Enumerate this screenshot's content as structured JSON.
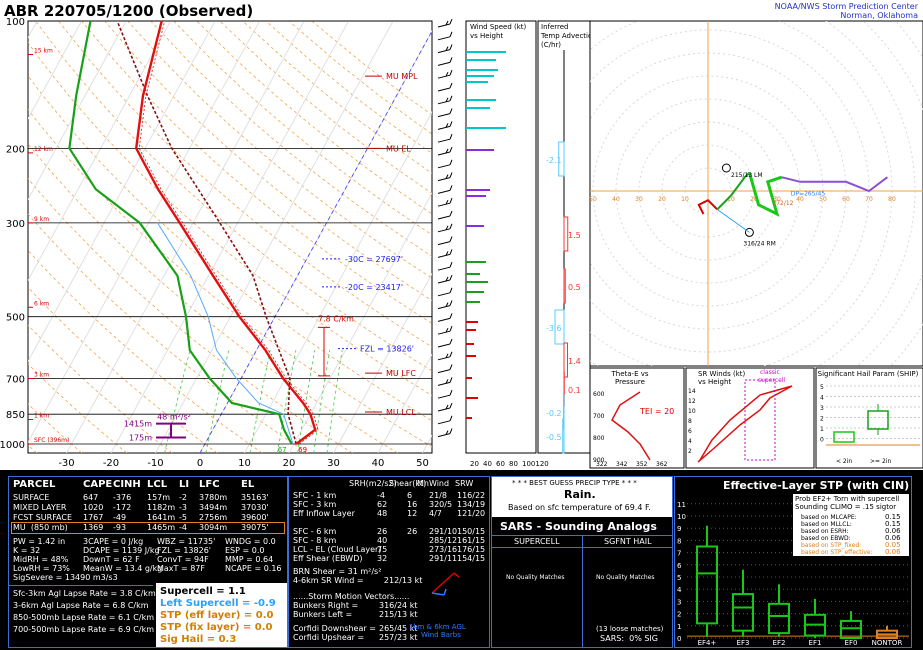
{
  "title": "ABR   220705/1200  (Observed)",
  "agency": "NOAA/NWS Storm Prediction Center",
  "location": "Norman, Oklahoma",
  "skewt": {
    "pressure_labels": [
      "100",
      "200",
      "300",
      "500",
      "700",
      "850",
      "1000"
    ],
    "temp_labels": [
      "-30",
      "-20",
      "-10",
      "0",
      "10",
      "20",
      "30",
      "40",
      "50"
    ],
    "height_labels": [
      "15 km",
      "12 km",
      "9 km",
      "6 km",
      "3 km",
      "1 km",
      "SFC (396m)"
    ],
    "mu_mpl": "MU MPL",
    "mu_el": "MU EL",
    "mu_lfc": "MU LFC",
    "mu_lcl": "MU LCL",
    "iso_30": "-30C = 27697'",
    "iso_20": "-20C = 23417'",
    "fzl": "FZL = 13826'",
    "lapse_7_8": "7.8 C/km",
    "eff_inflow_top": "1415m",
    "eff_inflow_bot": "175m",
    "eff_inflow_val": "48 m²/s²",
    "sfc_temp": "69",
    "sfc_dew": "67"
  },
  "wind_panel": {
    "title": "Wind Speed (kt)",
    "sub": "vs Height",
    "ticks": [
      "20",
      "40",
      "60",
      "80",
      "100120"
    ]
  },
  "temp_adv": {
    "title": "Inferred",
    "sub": "Temp Advection",
    "unit": "(C/hr)",
    "values": [
      "-2.1",
      "1.5",
      "0.5",
      "-3.6",
      "1.4",
      "0.1",
      "-0.2",
      "-0.5"
    ]
  },
  "hodograph": {
    "rings": [
      "10",
      "20",
      "30",
      "40",
      "50",
      "60",
      "70",
      "80"
    ],
    "lm": "215/13 LM",
    "rm": "316/24 RM",
    "dp": "DP=265/45",
    "cl": "272/12"
  },
  "theta_e": {
    "title": "Theta-E vs",
    "sub": "Pressure",
    "tei": "TEI = 20",
    "p_ticks": [
      "600",
      "700",
      "800",
      "900"
    ],
    "t_ticks": [
      "322",
      "342",
      "352",
      "362"
    ]
  },
  "sr_winds": {
    "title": "SR Winds (kt)",
    "sub": "vs Height",
    "h_ticks": [
      "14",
      "12",
      "10",
      "8",
      "6",
      "4",
      "2"
    ],
    "classic": "classic",
    "supercell": "supercell"
  },
  "ship": {
    "title": "Significant Hail Param (SHIP)",
    "y_ticks": [
      "5",
      "4",
      "3",
      "2",
      "1",
      "0"
    ],
    "x_labels": [
      "< 2in",
      ">= 2in"
    ]
  },
  "parcel_table": {
    "headers": [
      "PARCEL",
      "CAPE",
      "CINH",
      "LCL",
      "LI",
      "LFC",
      "EL"
    ],
    "rows": [
      [
        "SURFACE",
        "647",
        "-376",
        "157m",
        "-2",
        "3780m",
        "35163'"
      ],
      [
        "MIXED LAYER",
        "1020",
        "-172",
        "1182m",
        "-3",
        "3494m",
        "37030'"
      ],
      [
        "FCST SURFACE",
        "1767",
        "-49",
        "1641m",
        "-5",
        "2756m",
        "39600'"
      ],
      [
        "MU  (850 mb)",
        "1369",
        "-93",
        "1465m",
        "-4",
        "3094m",
        "39075'"
      ]
    ]
  },
  "thermo": {
    "c1": [
      "PW = 1.42 in",
      "K = 32",
      "MidRH = 48%",
      "LowRH = 73%",
      "SigSevere = 13490 m3/s3"
    ],
    "c2": [
      "3CAPE = 0 J/kg",
      "DCAPE = 1139 J/kg",
      "DownT = 62 F",
      "MeanW = 13.4 g/kg"
    ],
    "c3": [
      "WBZ = 11735'",
      "FZL = 13826'",
      "ConvT = 94F",
      "MaxT = 87F"
    ],
    "c4": [
      "WNDG = 0.0",
      "ESP = 0.0",
      "MMP = 0.64",
      "NCAPE = 0.16"
    ]
  },
  "lapse": [
    "Sfc-3km Agl Lapse Rate = 3.8 C/km",
    "3-6km Agl Lapse Rate = 6.8 C/km",
    "850-500mb Lapse Rate = 6.1 C/km",
    "700-500mb Lapse Rate = 6.9 C/km"
  ],
  "composites": {
    "supercell": "Supercell = 1.1",
    "left_supercell": "Left Supercell = -0.9",
    "stp_eff": "STP (eff layer) = 0.0",
    "stp_fix": "STP (fix layer) = 0.0",
    "sig_hail": "Sig Hail = 0.3"
  },
  "kinematics": {
    "headers": [
      "SRH(m2/s2)",
      "Shear(kt)",
      "MnWind",
      "SRW"
    ],
    "rows1": [
      [
        "SFC - 1 km",
        "-4",
        "6",
        "21/8",
        "116/22"
      ],
      [
        "SFC - 3 km",
        "62",
        "16",
        "320/5",
        "134/19"
      ],
      [
        "Eff Inflow Layer",
        "48",
        "12",
        "4/7",
        "121/20"
      ]
    ],
    "rows2": [
      [
        "SFC - 6 km",
        "26",
        "26",
        "291/10",
        "150/15"
      ],
      [
        "SFC - 8 km",
        "40",
        "285/12",
        "161/15"
      ],
      [
        "LCL - EL (Cloud Layer)",
        "75",
        "273/16",
        "176/15"
      ],
      [
        "Eff Shear (EBWD)",
        "32",
        "291/11",
        "154/15"
      ]
    ],
    "brn": "BRN Shear = 31 m²/s²",
    "sr46": "4-6km SR Wind =        212/13 kt",
    "storm_hdr": "......Storm Motion Vectors......",
    "motions": [
      [
        "Bunkers Right =",
        "316/24 kt"
      ],
      [
        "Bunkers Left =",
        "215/13 kt"
      ],
      [
        "Corfidi Downshear =",
        "265/45 kt"
      ],
      [
        "Corfidi Upshear =",
        "257/23 kt"
      ]
    ],
    "barbs_label": "1km & 6km AGL",
    "barbs_label2": "Wind Barbs"
  },
  "precip": {
    "hdr": "* * * BEST GUESS PRECIP TYPE * * *",
    "type": "Rain.",
    "note": "Based on sfc temperature of 69.4 F."
  },
  "sars": {
    "title": "SARS - Sounding Analogs",
    "col1": "SUPERCELL",
    "col2": "SGFNT HAIL",
    "nq1": "No Quality Matches",
    "nq2": "No Quality Matches",
    "loose": "(13 loose matches)",
    "sig": "SARS:  0% SIG"
  },
  "stp": {
    "title": "Effective-Layer STP (with CIN)",
    "prob": "Prob EF2+ Torn with supercell",
    "climo": "Sounding CLIMO = .15 sigtor",
    "items": [
      [
        "based on MLCAPE:",
        "0.15"
      ],
      [
        "based on MLLCL:",
        "0.15"
      ],
      [
        "based on ESRH:",
        "0.06"
      ],
      [
        "based on EBWD:",
        "0.06"
      ],
      [
        "based on STP_fixed:",
        "0.05"
      ],
      [
        "based on STP_effective:",
        "0.06"
      ]
    ],
    "y_ticks": [
      "11",
      "10",
      "9",
      "8",
      "7",
      "6",
      "5",
      "4",
      "3",
      "2",
      "1",
      "0"
    ],
    "categories": [
      "EF4+",
      "EF3",
      "EF2",
      "EF1",
      "EF0",
      "NONTOR"
    ]
  },
  "chart_data": {
    "type": "line",
    "title": "ABR   220705/1200  (Observed)",
    "xlabel": "",
    "ylabel": "",
    "pressure_hpa": [
      1000,
      925,
      850,
      800,
      700,
      600,
      500,
      400,
      300,
      250,
      200,
      150,
      100
    ],
    "series": [
      {
        "values": [
          20.5,
          23,
          20,
          17,
          9.5,
          2,
          -8,
          -19,
          -33,
          -42,
          -52,
          -57,
          -62
        ]
      },
      {
        "values": [
          19.5,
          16,
          13,
          1,
          -7,
          -15,
          -20,
          -27,
          -42,
          -56,
          -67,
          -72,
          -78
        ]
      }
    ],
    "xlim": [
      -30,
      50
    ],
    "ylim": [
      1000,
      100
    ],
    "parcels": {
      "headers": [
        "PARCEL",
        "CAPE",
        "CINH",
        "LCL",
        "LI",
        "LFC",
        "EL"
      ]
    }
  }
}
